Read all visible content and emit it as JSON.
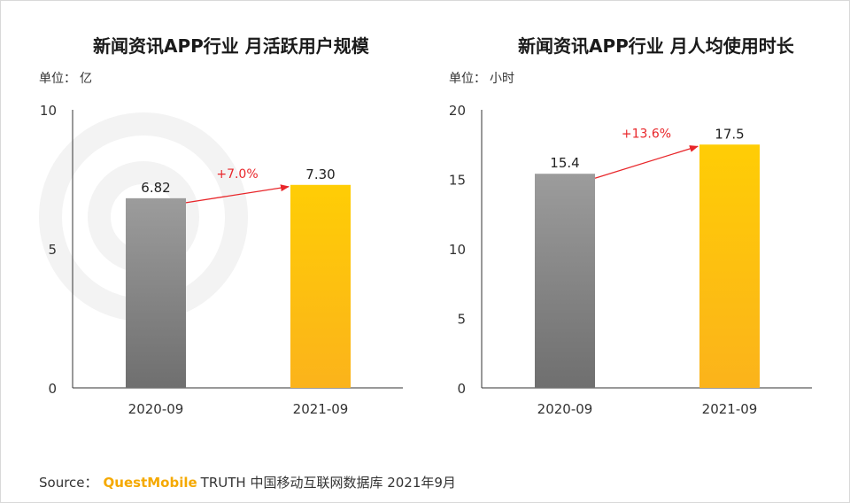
{
  "chart_data": [
    {
      "type": "bar",
      "title": "新闻资讯APP行业 月活跃用户规模",
      "unit_label": "单位：",
      "unit_value": "亿",
      "categories": [
        "2020-09",
        "2021-09"
      ],
      "values": [
        6.82,
        7.3
      ],
      "value_labels": [
        "6.82",
        "7.30"
      ],
      "ylim": [
        0,
        10
      ],
      "yticks": [
        0,
        5,
        10
      ],
      "growth_label": "+7.0%",
      "bar_colors": [
        "#8c8c8c",
        "#ffc107"
      ]
    },
    {
      "type": "bar",
      "title": "新闻资讯APP行业 月人均使用时长",
      "unit_label": "单位：",
      "unit_value": "小时",
      "categories": [
        "2020-09",
        "2021-09"
      ],
      "values": [
        15.4,
        17.5
      ],
      "value_labels": [
        "15.4",
        "17.5"
      ],
      "ylim": [
        0,
        20
      ],
      "yticks": [
        0,
        5,
        10,
        15,
        20
      ],
      "growth_label": "+13.6%",
      "bar_colors": [
        "#8c8c8c",
        "#ffc107"
      ]
    }
  ],
  "source": {
    "prefix": "Source：",
    "brand": "QuestMobile",
    "rest": "TRUTH 中国移动互联网数据库 2021年9月"
  },
  "colors": {
    "arrow": "#e8262a",
    "axis": "#333333",
    "brand": "#f5a900"
  }
}
